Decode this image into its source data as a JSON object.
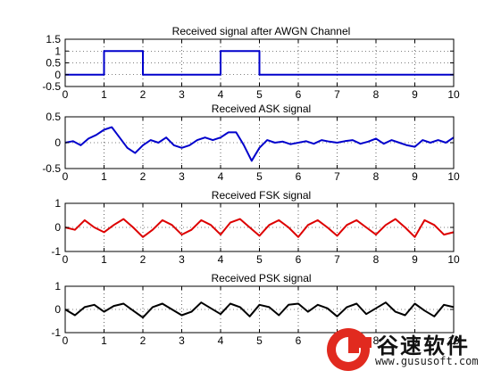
{
  "chart_data": [
    {
      "type": "line",
      "title": "Received signal after AWGN Channel",
      "xlim": [
        0,
        10
      ],
      "ylim": [
        -0.5,
        1.5
      ],
      "xticks": [
        0,
        1,
        2,
        3,
        4,
        5,
        6,
        7,
        8,
        9,
        10
      ],
      "yticks": [
        -0.5,
        0,
        0.5,
        1,
        1.5
      ],
      "ytick_labels": [
        "-0.5",
        "0",
        "0.5",
        "1",
        "1.5"
      ],
      "grid": true,
      "series": [
        {
          "color": "#0000cc",
          "x": [
            0,
            1,
            1,
            2,
            2,
            4,
            4,
            5,
            5,
            10
          ],
          "y": [
            0,
            0,
            1,
            1,
            0,
            0,
            1,
            1,
            0,
            0
          ]
        }
      ]
    },
    {
      "type": "line",
      "title": "Received ASK signal",
      "xlim": [
        0,
        10
      ],
      "ylim": [
        -0.5,
        0.5
      ],
      "xticks": [
        0,
        1,
        2,
        3,
        4,
        5,
        6,
        7,
        8,
        9,
        10
      ],
      "yticks": [
        -0.5,
        0,
        0.5
      ],
      "ytick_labels": [
        "-0.5",
        "0",
        "0.5"
      ],
      "grid": true,
      "series": [
        {
          "color": "#0000cc",
          "x": [
            0,
            0.2,
            0.4,
            0.6,
            0.8,
            1,
            1.2,
            1.4,
            1.6,
            1.8,
            2,
            2.2,
            2.4,
            2.6,
            2.8,
            3,
            3.2,
            3.4,
            3.6,
            3.8,
            4,
            4.2,
            4.4,
            4.6,
            4.8,
            5,
            5.2,
            5.4,
            5.6,
            5.8,
            6,
            6.2,
            6.4,
            6.6,
            6.8,
            7,
            7.2,
            7.4,
            7.6,
            7.8,
            8,
            8.2,
            8.4,
            8.6,
            8.8,
            9,
            9.2,
            9.4,
            9.6,
            9.8,
            10
          ],
          "y": [
            0,
            0.03,
            -0.05,
            0.08,
            0.15,
            0.25,
            0.3,
            0.1,
            -0.1,
            -0.2,
            -0.05,
            0.05,
            0,
            0.1,
            -0.05,
            -0.1,
            -0.05,
            0.05,
            0.1,
            0.05,
            0.1,
            0.2,
            0.2,
            -0.05,
            -0.35,
            -0.1,
            0.05,
            0,
            0.02,
            -0.03,
            0,
            0.03,
            -0.02,
            0.05,
            0.02,
            0,
            0.03,
            0.05,
            -0.02,
            0.02,
            0.08,
            -0.02,
            0.05,
            0,
            -0.05,
            -0.08,
            0.05,
            0,
            0.05,
            0,
            0.1
          ]
        }
      ]
    },
    {
      "type": "line",
      "title": "Received FSK signal",
      "xlim": [
        0,
        10
      ],
      "ylim": [
        -1,
        1
      ],
      "xticks": [
        0,
        1,
        2,
        3,
        4,
        5,
        6,
        7,
        8,
        9,
        10
      ],
      "yticks": [
        -1,
        0,
        1
      ],
      "ytick_labels": [
        "-1",
        "0",
        "1"
      ],
      "grid": true,
      "series": [
        {
          "color": "#dd0000",
          "x": [
            0,
            0.25,
            0.5,
            0.75,
            1,
            1.25,
            1.5,
            1.75,
            2,
            2.25,
            2.5,
            2.75,
            3,
            3.25,
            3.5,
            3.75,
            4,
            4.25,
            4.5,
            4.75,
            5,
            5.25,
            5.5,
            5.75,
            6,
            6.25,
            6.5,
            6.75,
            7,
            7.25,
            7.5,
            7.75,
            8,
            8.25,
            8.5,
            8.75,
            9,
            9.25,
            9.5,
            9.75,
            10
          ],
          "y": [
            0,
            -0.1,
            0.3,
            0,
            -0.2,
            0.1,
            0.35,
            0,
            -0.4,
            -0.1,
            0.3,
            0.1,
            -0.3,
            -0.1,
            0.3,
            0.1,
            -0.3,
            0.2,
            0.35,
            0,
            -0.35,
            0.1,
            0.3,
            0,
            -0.4,
            0.1,
            0.3,
            0,
            -0.35,
            0.1,
            0.3,
            0,
            -0.3,
            0.1,
            0.35,
            0,
            -0.4,
            0.3,
            0.1,
            -0.3,
            -0.2
          ]
        }
      ]
    },
    {
      "type": "line",
      "title": "Received PSK signal",
      "xlim": [
        0,
        10
      ],
      "ylim": [
        -1,
        1
      ],
      "xticks": [
        0,
        1,
        2,
        3,
        4,
        5,
        6,
        7,
        8,
        9,
        10
      ],
      "yticks": [
        -1,
        0,
        1
      ],
      "ytick_labels": [
        "-1",
        "0",
        "1"
      ],
      "grid": true,
      "series": [
        {
          "color": "#000000",
          "x": [
            0,
            0.25,
            0.5,
            0.75,
            1,
            1.25,
            1.5,
            1.75,
            2,
            2.25,
            2.5,
            2.75,
            3,
            3.25,
            3.5,
            3.75,
            4,
            4.25,
            4.5,
            4.75,
            5,
            5.25,
            5.5,
            5.75,
            6,
            6.25,
            6.5,
            6.75,
            7,
            7.25,
            7.5,
            7.75,
            8,
            8.25,
            8.5,
            8.75,
            9,
            9.25,
            9.5,
            9.75,
            10
          ],
          "y": [
            0,
            -0.25,
            0.1,
            0.2,
            -0.1,
            0.15,
            0.25,
            -0.05,
            -0.35,
            0.1,
            0.25,
            0,
            -0.25,
            -0.1,
            0.3,
            0.05,
            -0.2,
            0.25,
            0.1,
            -0.3,
            0.2,
            0.1,
            -0.25,
            0.2,
            0.25,
            -0.1,
            0.2,
            0.05,
            -0.3,
            0.1,
            0.25,
            -0.2,
            0.05,
            0.3,
            -0.1,
            -0.25,
            0.25,
            -0.05,
            -0.3,
            0.2,
            0.1
          ]
        }
      ]
    }
  ],
  "watermark": {
    "logo_letter": "G",
    "brand_text": "谷速软件",
    "url": "www.gususoft.com"
  }
}
